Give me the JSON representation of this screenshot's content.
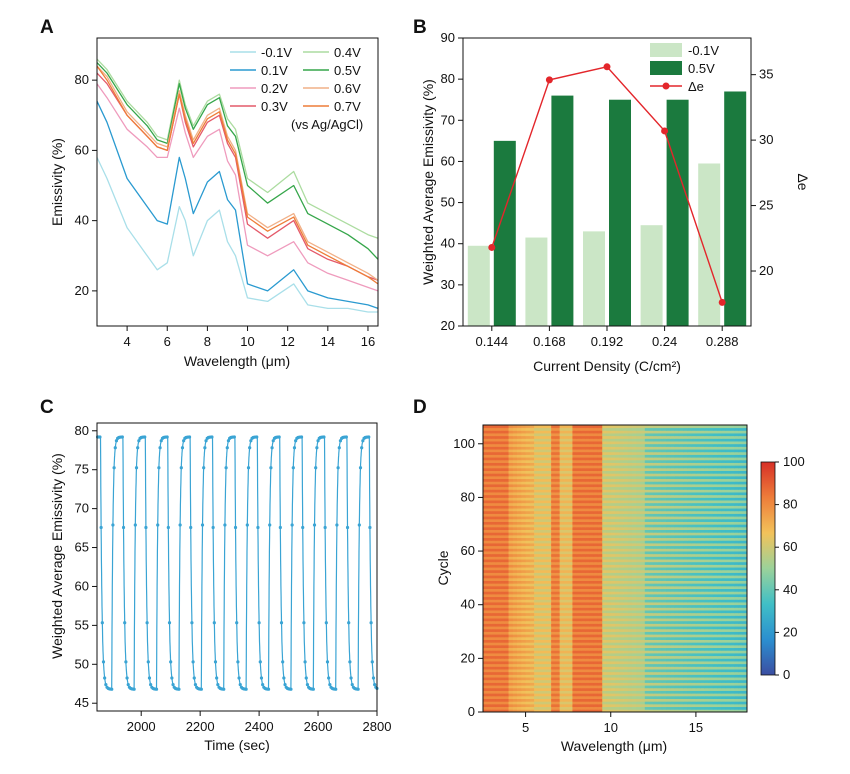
{
  "panels": {
    "a": "A",
    "b": "B",
    "c": "C",
    "d": "D"
  },
  "colors": {
    "neg01": "#a9dfe9",
    "p01": "#2a9ad0",
    "p02": "#ef9bbd",
    "p03": "#e45a6a",
    "p04": "#acdca0",
    "p05": "#35a64a",
    "p06": "#f1b087",
    "p07": "#ee7d38",
    "bar_light": "#cbe6c6",
    "bar_dark": "#1b7a3e",
    "delta": "#e3262b",
    "series_c": "#3aa4d4"
  },
  "chart_data": [
    {
      "panel": "A",
      "type": "line",
      "xlabel": "Wavelength (μm)",
      "ylabel": "Emissivity (%)",
      "xlim": [
        2.5,
        16.5
      ],
      "ylim": [
        10,
        92
      ],
      "xticks": [
        "4",
        "6",
        "8",
        "10",
        "12",
        "14",
        "16"
      ],
      "yticks": [
        "20",
        "40",
        "60",
        "80"
      ],
      "legend_note": "(vs Ag/AgCl)",
      "legend_placement": "top-right",
      "series": [
        {
          "name": "-0.1V",
          "color": "#a9dfe9",
          "x": [
            2.5,
            3,
            4,
            5,
            5.5,
            6,
            6.6,
            6.9,
            7.3,
            8,
            8.6,
            9,
            9.4,
            10,
            11,
            12.3,
            13,
            14,
            15,
            16,
            16.5
          ],
          "y": [
            58,
            52,
            38,
            30,
            26,
            28,
            44,
            40,
            30,
            40,
            43,
            34,
            30,
            18,
            17,
            22,
            16,
            15,
            15,
            14,
            14
          ]
        },
        {
          "name": "0.1V",
          "color": "#2a9ad0",
          "x": [
            2.5,
            3,
            4,
            5,
            5.5,
            6,
            6.6,
            6.9,
            7.3,
            8,
            8.6,
            9,
            9.4,
            10,
            11,
            12.3,
            13,
            14,
            15,
            16,
            16.5
          ],
          "y": [
            74,
            68,
            52,
            44,
            40,
            39,
            58,
            52,
            42,
            51,
            54,
            46,
            43,
            22,
            20,
            26,
            20,
            18,
            17,
            16,
            15
          ]
        },
        {
          "name": "0.2V",
          "color": "#ef9bbd",
          "x": [
            2.5,
            3,
            4,
            5,
            5.5,
            6,
            6.6,
            6.9,
            7.3,
            8,
            8.6,
            9,
            9.4,
            10,
            11,
            12.3,
            13,
            14,
            15,
            16,
            16.5
          ],
          "y": [
            79,
            75,
            66,
            61,
            58,
            58,
            72,
            65,
            58,
            64,
            66,
            57,
            53,
            33,
            30,
            34,
            28,
            25,
            23,
            21,
            20
          ]
        },
        {
          "name": "0.3V",
          "color": "#e45a6a",
          "x": [
            2.5,
            3,
            4,
            5,
            5.5,
            6,
            6.6,
            6.9,
            7.3,
            8,
            8.6,
            9,
            9.4,
            10,
            11,
            12.3,
            13,
            14,
            15,
            16,
            16.5
          ],
          "y": [
            82,
            79,
            70,
            64,
            61,
            60,
            76,
            68,
            61,
            68,
            70,
            62,
            58,
            39,
            35,
            40,
            32,
            29,
            27,
            24,
            23
          ]
        },
        {
          "name": "0.4V",
          "color": "#acdca0",
          "x": [
            2.5,
            3,
            4,
            5,
            5.5,
            6,
            6.6,
            6.9,
            7.3,
            8,
            8.6,
            9,
            9.4,
            10,
            11,
            12.3,
            13,
            14,
            15,
            16,
            16.5
          ],
          "y": [
            86,
            83,
            74,
            68,
            64,
            63,
            80,
            73,
            67,
            74,
            76,
            69,
            66,
            52,
            48,
            54,
            45,
            42,
            39,
            36,
            35
          ]
        },
        {
          "name": "0.5V",
          "color": "#35a64a",
          "x": [
            2.5,
            3,
            4,
            5,
            5.5,
            6,
            6.6,
            6.9,
            7.3,
            8,
            8.6,
            9,
            9.4,
            10,
            11,
            12.3,
            13,
            14,
            15,
            16,
            16.5
          ],
          "y": [
            85,
            82,
            73,
            67,
            63,
            62,
            79,
            72,
            66,
            73,
            75,
            67,
            64,
            50,
            45,
            50,
            42,
            39,
            36,
            32,
            29
          ]
        },
        {
          "name": "0.6V",
          "color": "#f1b087",
          "x": [
            2.5,
            3,
            4,
            5,
            5.5,
            6,
            6.6,
            6.9,
            7.3,
            8,
            8.6,
            9,
            9.4,
            10,
            11,
            12.3,
            13,
            14,
            15,
            16,
            16.5
          ],
          "y": [
            84,
            81,
            71,
            65,
            62,
            61,
            77,
            70,
            63,
            70,
            72,
            64,
            60,
            42,
            38,
            42,
            34,
            31,
            28,
            25,
            23
          ]
        },
        {
          "name": "0.7V",
          "color": "#ee7d38",
          "x": [
            2.5,
            3,
            4,
            5,
            5.5,
            6,
            6.6,
            6.9,
            7.3,
            8,
            8.6,
            9,
            9.4,
            10,
            11,
            12.3,
            13,
            14,
            15,
            16,
            16.5
          ],
          "y": [
            84,
            80,
            70,
            64,
            61,
            60,
            76,
            69,
            62,
            69,
            71,
            63,
            59,
            41,
            37,
            41,
            33,
            30,
            27,
            24,
            22
          ]
        }
      ]
    },
    {
      "panel": "B",
      "type": "bar",
      "xlabel": "Current Density (C/cm²)",
      "ylabel": "Weighted Average Emissivity (%)",
      "y2label": "Δe",
      "categories": [
        "0.144",
        "0.168",
        "0.192",
        "0.24",
        "0.288"
      ],
      "ylim": [
        20,
        90
      ],
      "yticks": [
        "20",
        "30",
        "40",
        "50",
        "60",
        "70",
        "80",
        "90"
      ],
      "y2lim": [
        15.8,
        37.8
      ],
      "y2ticks": [
        "20",
        "25",
        "30",
        "35"
      ],
      "legend_placement": "top-right",
      "series": [
        {
          "name": "-0.1V",
          "type": "bar",
          "color": "#cbe6c6",
          "values": [
            39.5,
            41.5,
            43,
            44.5,
            59.5
          ]
        },
        {
          "name": "0.5V",
          "type": "bar",
          "color": "#1b7a3e",
          "values": [
            65,
            76,
            75,
            75,
            77
          ]
        },
        {
          "name": "Δe",
          "type": "line",
          "axis": "right",
          "color": "#e3262b",
          "values": [
            21.8,
            34.6,
            35.6,
            30.7,
            17.6
          ]
        }
      ]
    },
    {
      "panel": "C",
      "type": "line",
      "xlabel": "Time (sec)",
      "ylabel": "Weighted Average Emissivity (%)",
      "xlim": [
        1850,
        2800
      ],
      "ylim": [
        44,
        81
      ],
      "xticks": [
        "2000",
        "2200",
        "2400",
        "2600",
        "2800"
      ],
      "yticks": [
        "45",
        "50",
        "55",
        "60",
        "65",
        "70",
        "75",
        "80"
      ],
      "period_sec": 76,
      "first_drop_sec": 1862,
      "high_value": 79.2,
      "low_value": 46.8,
      "cycles": 13
    },
    {
      "panel": "D",
      "type": "heatmap",
      "xlabel": "Wavelength (μm)",
      "ylabel": "Cycle",
      "xlim": [
        2.5,
        18
      ],
      "ylim": [
        0,
        107
      ],
      "xticks": [
        "5",
        "10",
        "15"
      ],
      "yticks": [
        "0",
        "20",
        "40",
        "60",
        "80",
        "100"
      ],
      "colorbar_ticks": [
        "0",
        "20",
        "40",
        "60",
        "80",
        "100"
      ],
      "colorbar_range": [
        0,
        100
      ],
      "colormap": [
        "#3b4ea2",
        "#2b8fd0",
        "#40bfc6",
        "#9bd29a",
        "#f2c25a",
        "#ee7d3a",
        "#d73027"
      ]
    }
  ]
}
